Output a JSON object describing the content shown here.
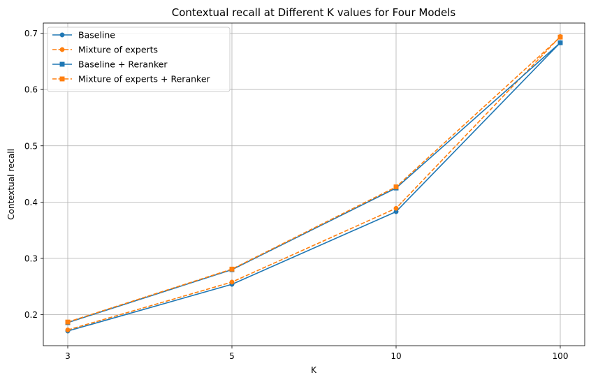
{
  "chart_data": {
    "type": "line",
    "title": "Contextual recall at Different K values for Four Models",
    "xlabel": "K",
    "ylabel": "Contextual recall",
    "categories": [
      "3",
      "5",
      "10",
      "100"
    ],
    "ylim": [
      0.145,
      0.718
    ],
    "yticks": [
      0.2,
      0.3,
      0.4,
      0.5,
      0.6,
      0.7
    ],
    "ytick_labels": [
      "0.2",
      "0.3",
      "0.4",
      "0.5",
      "0.6",
      "0.7"
    ],
    "grid": true,
    "legend_position": "upper-left",
    "series": [
      {
        "name": "Baseline",
        "values": [
          0.171,
          0.254,
          0.383,
          0.683
        ],
        "color": "#1f77b4",
        "linestyle": "solid",
        "marker": "circle"
      },
      {
        "name": "Mixture of experts",
        "values": [
          0.173,
          0.258,
          0.389,
          0.694
        ],
        "color": "#ff7f0e",
        "linestyle": "dashed",
        "marker": "circle"
      },
      {
        "name": "Baseline + Reranker",
        "values": [
          0.186,
          0.28,
          0.425,
          0.683
        ],
        "color": "#1f77b4",
        "linestyle": "solid",
        "marker": "square"
      },
      {
        "name": "Mixture of experts + Reranker",
        "values": [
          0.187,
          0.281,
          0.427,
          0.693
        ],
        "color": "#ff7f0e",
        "linestyle": "dashed",
        "marker": "square"
      }
    ]
  }
}
